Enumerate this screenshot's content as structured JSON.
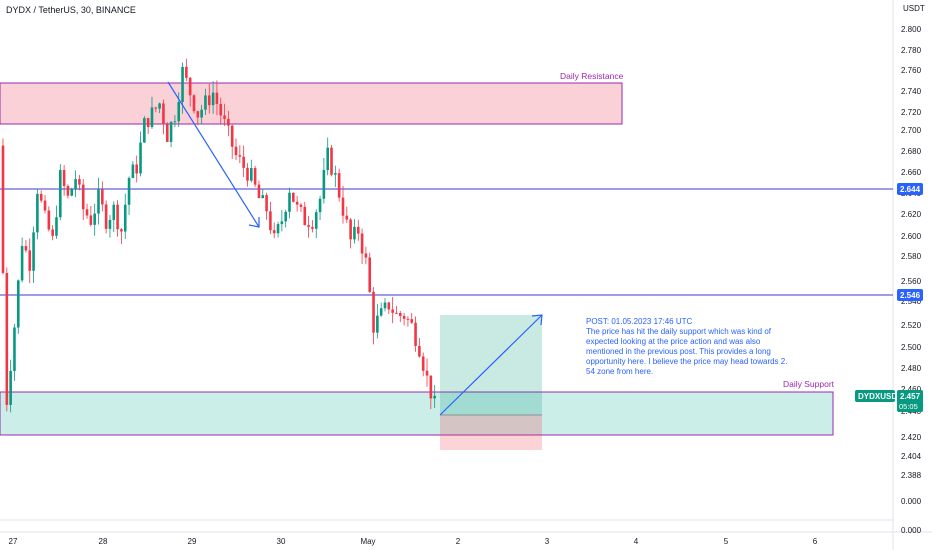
{
  "header": {
    "title": "DYDX / TetherUS, 30, BINANCE",
    "currency": "USDT"
  },
  "colors": {
    "up": "#089981",
    "down": "#f23645",
    "resistance_fill": "#f8c9cf",
    "resistance_border": "#9c27b0",
    "support_fill": "#c6ece6",
    "support_border": "#9c27b0",
    "level_line": "#3a3ad6",
    "arrow": "#2962ff",
    "price_badge": "#089981",
    "level_badge": "#2962ff"
  },
  "levels": {
    "resistance_label": "Daily Resistance",
    "support_label": "Daily Support",
    "upper_line_label": "2.644",
    "lower_line_label": "2.546"
  },
  "ticker_badge": {
    "symbol": "DYDXUSDT",
    "price": "2.457",
    "countdown": "05:05"
  },
  "annotation": {
    "lines": [
      "POST: 01.05.2023 17:46 UTC",
      "The price has hit the daily support which was kind of",
      "expected looking at the price action and was also",
      "mentioned in the previous post. This provides a long",
      "opportunity here. I believe the price may head towards 2.",
      "54 zone from here."
    ]
  },
  "chart_data": {
    "type": "candlestick",
    "symbol": "DYDX / TetherUS",
    "interval": "30",
    "exchange": "BINANCE",
    "y_ticks": [
      "2.800",
      "2.780",
      "2.760",
      "2.740",
      "2.720",
      "2.700",
      "2.680",
      "2.660",
      "2.640",
      "2.620",
      "2.600",
      "2.580",
      "2.560",
      "2.540",
      "2.520",
      "2.500",
      "2.480",
      "2.460",
      "2.440",
      "2.420",
      "2.404",
      "2.388",
      "0.000",
      "0.000"
    ],
    "x_ticks": [
      "27",
      "28",
      "29",
      "30",
      "May",
      "2",
      "3",
      "4",
      "5",
      "6"
    ],
    "resistance_zone": [
      2.706,
      2.745
    ],
    "support_zone": [
      2.422,
      2.462
    ],
    "horizontal_levels": [
      2.644,
      2.546
    ],
    "last_price": 2.457,
    "position": {
      "entry": 2.443,
      "target": 2.529,
      "stop": 2.41
    },
    "path_points": [
      [
        0,
        2.69
      ],
      [
        2,
        2.45
      ],
      [
        4,
        2.52
      ],
      [
        6,
        2.6
      ],
      [
        8,
        2.58
      ],
      [
        10,
        2.65
      ],
      [
        12,
        2.62
      ],
      [
        14,
        2.6
      ],
      [
        16,
        2.66
      ],
      [
        18,
        2.64
      ],
      [
        20,
        2.66
      ],
      [
        22,
        2.63
      ],
      [
        24,
        2.62
      ],
      [
        26,
        2.64
      ],
      [
        28,
        2.62
      ],
      [
        30,
        2.63
      ],
      [
        32,
        2.61
      ],
      [
        34,
        2.66
      ],
      [
        36,
        2.67
      ],
      [
        38,
        2.71
      ],
      [
        40,
        2.72
      ],
      [
        42,
        2.73
      ],
      [
        44,
        2.7
      ],
      [
        46,
        2.72
      ],
      [
        48,
        2.76
      ],
      [
        50,
        2.74
      ],
      [
        52,
        2.72
      ],
      [
        54,
        2.73
      ],
      [
        56,
        2.74
      ],
      [
        58,
        2.72
      ],
      [
        60,
        2.7
      ],
      [
        62,
        2.68
      ],
      [
        64,
        2.67
      ],
      [
        66,
        2.66
      ],
      [
        68,
        2.64
      ],
      [
        70,
        2.63
      ],
      [
        72,
        2.6
      ],
      [
        74,
        2.62
      ],
      [
        76,
        2.65
      ],
      [
        78,
        2.63
      ],
      [
        80,
        2.62
      ],
      [
        82,
        2.62
      ],
      [
        84,
        2.64
      ],
      [
        86,
        2.68
      ],
      [
        88,
        2.66
      ],
      [
        90,
        2.63
      ],
      [
        92,
        2.6
      ],
      [
        94,
        2.61
      ],
      [
        96,
        2.58
      ],
      [
        98,
        2.52
      ],
      [
        100,
        2.53
      ],
      [
        102,
        2.54
      ],
      [
        104,
        2.53
      ],
      [
        106,
        2.53
      ],
      [
        108,
        2.52
      ],
      [
        110,
        2.5
      ],
      [
        112,
        2.47
      ],
      [
        114,
        2.445
      ]
    ]
  }
}
